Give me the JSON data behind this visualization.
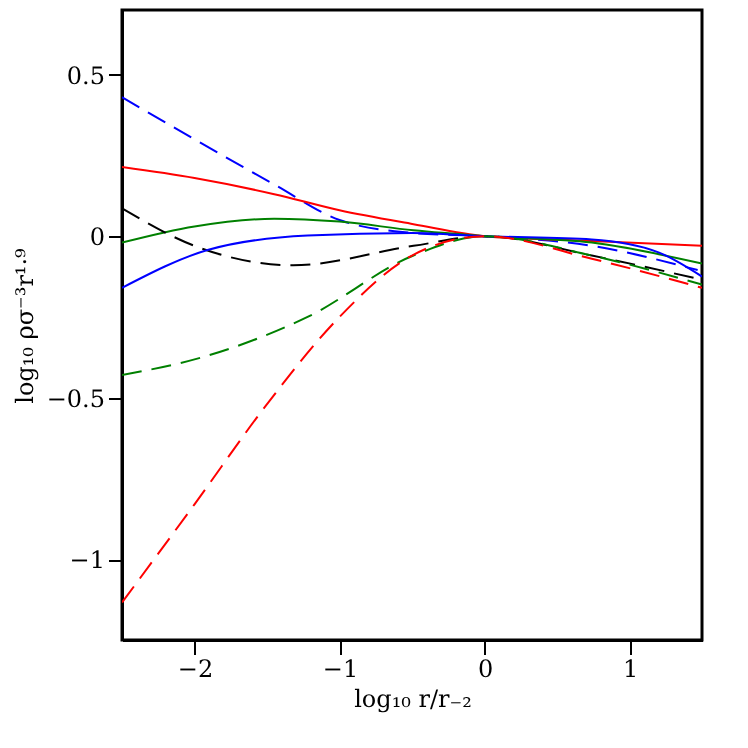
{
  "chart_data": {
    "type": "line",
    "xlabel": "log₁₀ r/r₋₂",
    "ylabel": "log₁₀ ρσ⁻³r¹·⁹",
    "xlim": [
      -2.5,
      1.5
    ],
    "ylim": [
      -1.25,
      0.7
    ],
    "xticks": [
      -2,
      -1,
      0,
      1
    ],
    "yticks": [
      -1,
      -0.5,
      0,
      0.5
    ],
    "grid": false,
    "marker": "none",
    "series": [
      {
        "color": "#0000ff",
        "line_style": "dashed",
        "x": [
          -2.5,
          -2,
          -1.45,
          -1,
          -0.5,
          0,
          0.74,
          1.47
        ],
        "values": [
          0.43,
          0.3,
          0.16,
          0.05,
          0.01,
          0,
          -0.03,
          -0.105
        ]
      },
      {
        "color": "#ff0000",
        "line_style": "solid",
        "x": [
          -2.5,
          -2,
          -1.45,
          -1,
          -0.49,
          0,
          0.74,
          1.5
        ],
        "values": [
          0.214,
          0.18,
          0.13,
          0.08,
          0.037,
          0,
          -0.015,
          -0.03
        ]
      },
      {
        "color": "#008000",
        "line_style": "solid",
        "x": [
          -2.5,
          -2,
          -1.45,
          -1,
          -0.49,
          0,
          0.74,
          1.5
        ],
        "values": [
          -0.02,
          0.03,
          0.054,
          0.045,
          0.018,
          0,
          -0.02,
          -0.085
        ]
      },
      {
        "color": "#000000",
        "line_style": "dashed",
        "x": [
          -2.5,
          -2,
          -1.32,
          -0.49,
          0,
          0.74,
          1.5
        ],
        "values": [
          0.086,
          -0.03,
          -0.09,
          -0.03,
          0,
          -0.06,
          -0.135
        ]
      },
      {
        "color": "#0000ff",
        "line_style": "solid",
        "x": [
          -2.5,
          -1.91,
          -1.22,
          -0.5,
          0,
          0.74,
          1.2,
          1.5
        ],
        "values": [
          -0.16,
          -0.043,
          0.002,
          0.01,
          0,
          -0.01,
          -0.05,
          -0.125
        ]
      },
      {
        "color": "#008000",
        "line_style": "dashed",
        "x": [
          -2.5,
          -1.91,
          -1.22,
          -0.49,
          0,
          0.74,
          1.5
        ],
        "values": [
          -0.43,
          -0.37,
          -0.25,
          -0.06,
          0,
          -0.06,
          -0.15
        ]
      },
      {
        "color": "#ff0000",
        "line_style": "dashed",
        "x": [
          -2.5,
          -2,
          -1.5,
          -1,
          -0.5,
          0,
          0.74,
          1.5
        ],
        "values": [
          -1.134,
          -0.83,
          -0.52,
          -0.25,
          -0.06,
          0,
          -0.07,
          -0.16
        ]
      }
    ]
  }
}
